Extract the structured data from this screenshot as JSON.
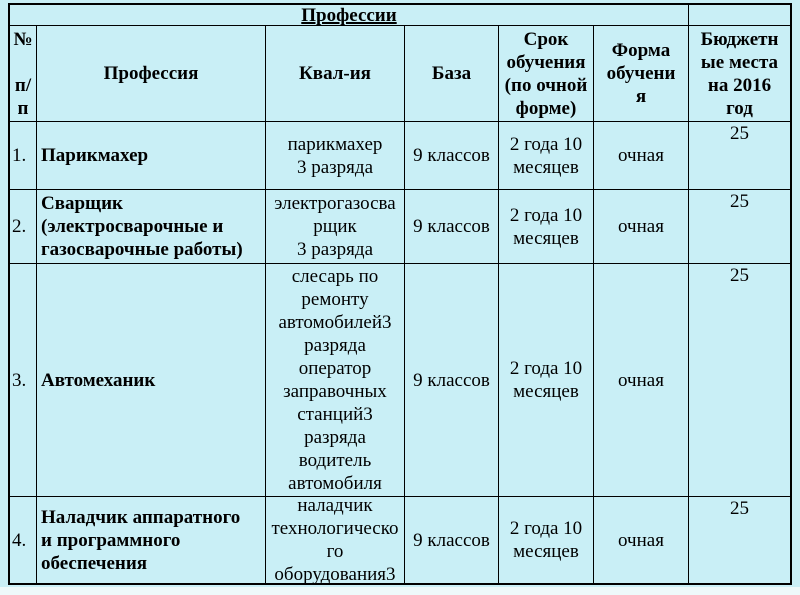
{
  "colors": {
    "cell_bg": "#C9EFF6",
    "border": "#000000",
    "text": "#000000",
    "bottom_strip": "#EEF9FA"
  },
  "table": {
    "title": "Профессии",
    "headers": {
      "num": "№\n\nп/\nп",
      "profession": "Профессия",
      "qualification": "Квал-ия",
      "base": "База",
      "duration": "Срок\nобучения\n(по очной\nформе)",
      "form": "Форма\nобучени\nя",
      "budget": "Бюджетн\nые места\nна 2016\nгод"
    },
    "rows": [
      {
        "num": "1.",
        "profession": "Парикмахер",
        "qualification": "парикмахер\n3 разряда",
        "base": "9 классов",
        "duration": "2 года 10\nмесяцев",
        "form": "очная",
        "budget": "25"
      },
      {
        "num": "2.",
        "profession": "Сварщик\n(электросварочные и\nгазосварочные работы)",
        "qualification": "электрогазосва\nрщик\n3 разряда",
        "base": "9 классов",
        "duration": "2 года 10\nмесяцев",
        "form": "очная",
        "budget": "25"
      },
      {
        "num": "3.",
        "profession": "Автомеханик",
        "qualification": "слесарь по\nремонту\nавтомобилей3\nразряда\nоператор\nзаправочных\nстанций3\nразряда\nводитель\nавтомобиля",
        "base": "9 классов",
        "duration": "2 года 10\nмесяцев",
        "form": "очная",
        "budget": "25"
      },
      {
        "num": "4.",
        "profession": "Наладчик аппаратного\nи программного\nобеспечения",
        "qualification": "наладчик\nтехнологическо\nго\nоборудования3",
        "base": "9 классов",
        "duration": "2 года 10\nмесяцев",
        "form": "очная",
        "budget": "25"
      }
    ]
  }
}
